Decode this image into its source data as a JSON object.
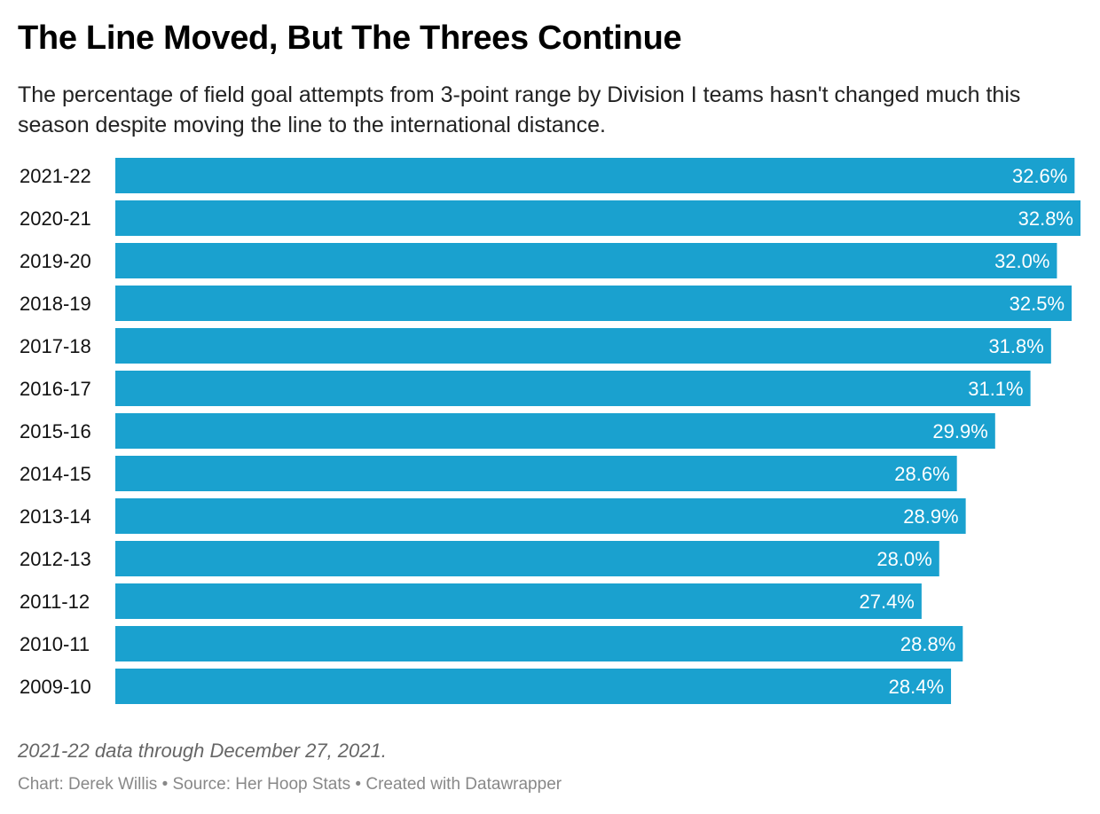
{
  "chart_data": {
    "type": "bar",
    "orientation": "horizontal",
    "title": "The Line Moved, But The Threes Continue",
    "subtitle": "The percentage of field goal attempts from 3-point range by Division I teams hasn't changed much this season despite moving the line to the international distance.",
    "categories": [
      "2021-22",
      "2020-21",
      "2019-20",
      "2018-19",
      "2017-18",
      "2016-17",
      "2015-16",
      "2014-15",
      "2013-14",
      "2012-13",
      "2011-12",
      "2010-11",
      "2009-10"
    ],
    "values": [
      32.6,
      32.8,
      32.0,
      32.5,
      31.8,
      31.1,
      29.9,
      28.6,
      28.9,
      28.0,
      27.4,
      28.8,
      28.4
    ],
    "labels": [
      "32.6%",
      "32.8%",
      "32.0%",
      "32.5%",
      "31.8%",
      "31.1%",
      "29.9%",
      "28.6%",
      "28.9%",
      "28.0%",
      "27.4%",
      "28.8%",
      "28.4%"
    ],
    "xlim": [
      0,
      32.8
    ],
    "grid": false,
    "bar_color": "#1aa1cf",
    "label_color": "#ffffff"
  },
  "footer": {
    "note": "2021-22 data through December 27, 2021.",
    "credits": "Chart: Derek Willis • Source: Her Hoop Stats • Created with Datawrapper"
  }
}
